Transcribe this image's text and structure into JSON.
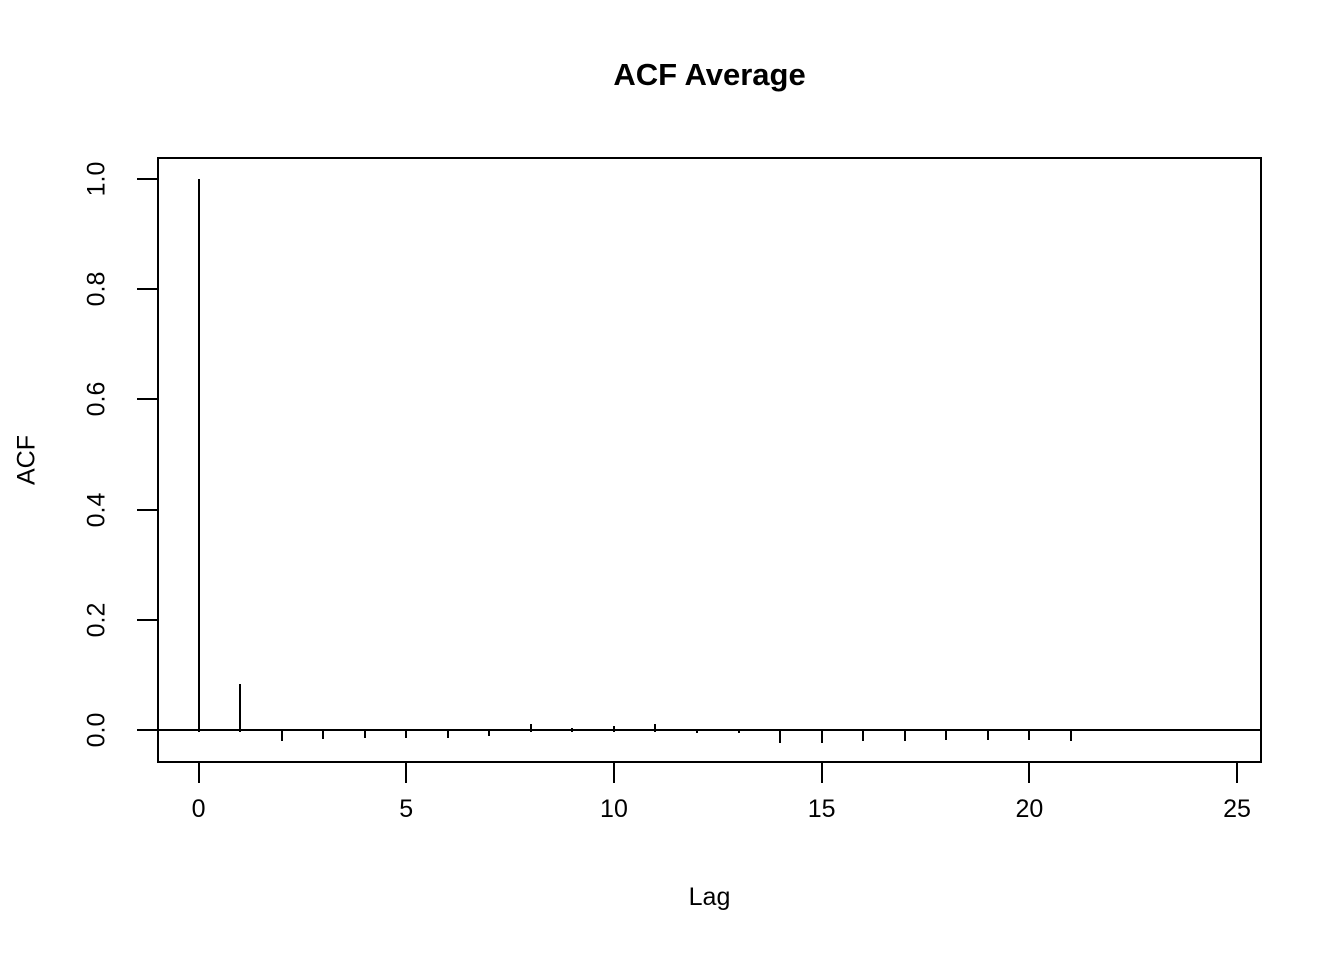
{
  "figure": {
    "background_color": "#ffffff",
    "line_color": "#000000"
  },
  "chart_data": {
    "type": "bar",
    "title": "ACF Average",
    "xlabel": "Lag",
    "ylabel": "ACF",
    "x": [
      0,
      1,
      2,
      3,
      4,
      5,
      6,
      7,
      8,
      9,
      10,
      11,
      12,
      13,
      14,
      15,
      16,
      17,
      18,
      19,
      20,
      21,
      22,
      23,
      24,
      25
    ],
    "values": [
      1.0,
      0.082,
      -0.017,
      -0.014,
      -0.011,
      -0.011,
      -0.012,
      -0.009,
      0.01,
      0.002,
      0.006,
      0.01,
      -0.002,
      -0.002,
      -0.02,
      -0.02,
      -0.018,
      -0.018,
      -0.016,
      -0.015,
      -0.016,
      -0.018,
      0.0,
      0.0,
      0.0,
      0.0
    ],
    "xlim": [
      -1.0,
      25.6
    ],
    "ylim": [
      -0.0608,
      1.0408
    ],
    "xticks": [
      {
        "label": "0",
        "value": 0
      },
      {
        "label": "5",
        "value": 5
      },
      {
        "label": "10",
        "value": 10
      },
      {
        "label": "15",
        "value": 15
      },
      {
        "label": "20",
        "value": 20
      },
      {
        "label": "25",
        "value": 25
      }
    ],
    "yticks": [
      {
        "label": "0.0",
        "value": 0.0
      },
      {
        "label": "0.2",
        "value": 0.2
      },
      {
        "label": "0.4",
        "value": 0.4
      },
      {
        "label": "0.6",
        "value": 0.6
      },
      {
        "label": "0.8",
        "value": 0.8
      },
      {
        "label": "1.0",
        "value": 1.0
      }
    ],
    "grid": false,
    "legend": null,
    "zero_line": true
  }
}
